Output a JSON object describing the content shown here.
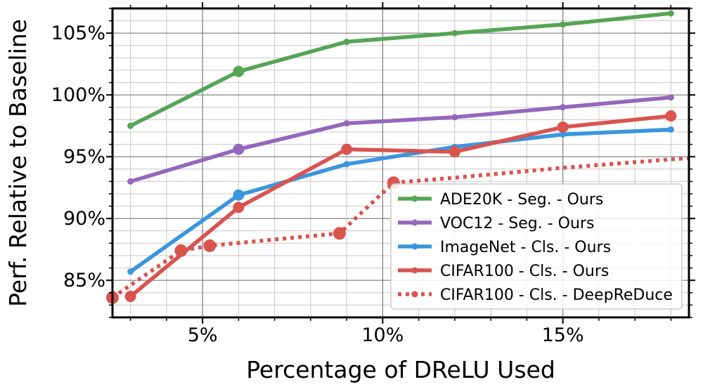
{
  "chart_data": {
    "type": "line",
    "xlabel": "Percentage of DReLU Used",
    "ylabel": "Perf. Relative to Baseline",
    "xlim": [
      2.5,
      18.5
    ],
    "ylim": [
      82,
      107
    ],
    "x_ticks": [
      5,
      10,
      15
    ],
    "x_tick_labels": [
      "5%",
      "10%",
      "15%"
    ],
    "y_ticks": [
      85,
      90,
      95,
      100,
      105
    ],
    "y_tick_labels": [
      "85%",
      "90%",
      "95%",
      "100%",
      "105%"
    ],
    "grid": true,
    "minor_grid": true,
    "legend_position": "lower-right",
    "series": [
      {
        "name": "ADE20K - Seg. - Ours",
        "color": "#55a555",
        "style": "solid",
        "x": [
          3,
          6,
          9,
          12,
          15,
          18
        ],
        "y": [
          97.5,
          101.9,
          104.3,
          105.0,
          105.7,
          106.6
        ],
        "large_markers": [
          6
        ]
      },
      {
        "name": "VOC12 - Seg. - Ours",
        "color": "#9467bd",
        "style": "solid",
        "x": [
          3,
          6,
          9,
          12,
          15,
          18
        ],
        "y": [
          93.0,
          95.6,
          97.7,
          98.2,
          99.0,
          99.8
        ],
        "large_markers": [
          6
        ]
      },
      {
        "name": "ImageNet - Cls. - Ours",
        "color": "#3a96dd",
        "style": "solid",
        "x": [
          3,
          6,
          9,
          12,
          15,
          18
        ],
        "y": [
          85.7,
          91.9,
          94.4,
          95.8,
          96.8,
          97.2
        ],
        "large_markers": [
          6
        ]
      },
      {
        "name": "CIFAR100 - Cls. - Ours",
        "color": "#d9534f",
        "style": "solid",
        "x": [
          3,
          6,
          9,
          12,
          15,
          18
        ],
        "y": [
          83.7,
          90.9,
          95.6,
          95.4,
          97.4,
          98.3
        ],
        "large_markers": [
          3,
          6,
          9,
          12,
          15,
          18
        ]
      },
      {
        "name": "CIFAR100 - Cls. - DeepReDuce",
        "color": "#d9534f",
        "style": "dotted",
        "x": [
          2.5,
          4.4,
          5.2,
          8.8,
          10.3,
          12,
          15,
          18.5
        ],
        "y": [
          83.6,
          87.4,
          87.8,
          88.8,
          92.9,
          93.3,
          94.1,
          94.9
        ],
        "large_markers": [
          2.5,
          4.4,
          5.2,
          8.8,
          10.3
        ]
      }
    ]
  }
}
